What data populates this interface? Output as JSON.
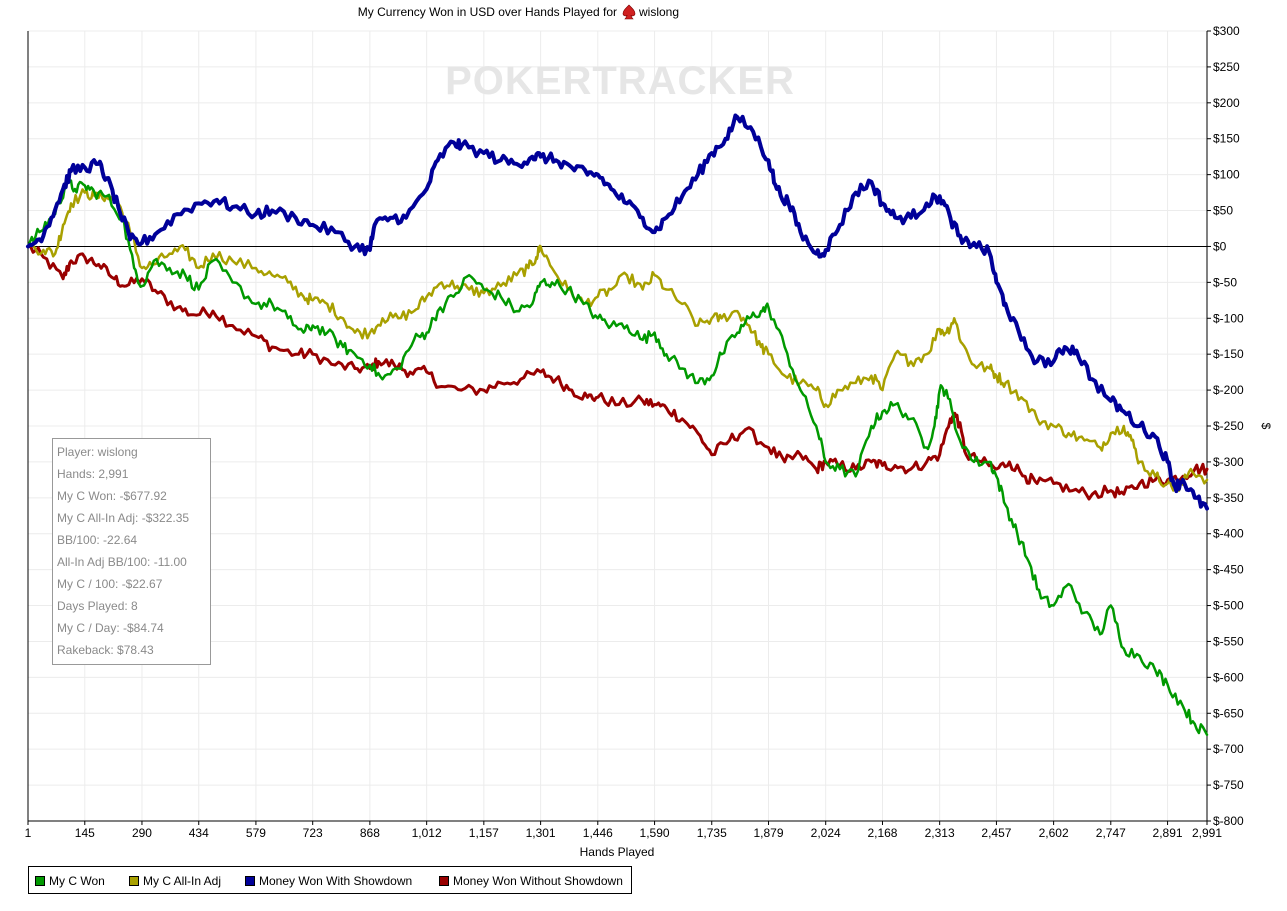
{
  "chart_data": {
    "type": "line",
    "title_prefix": "My Currency Won in USD over Hands Played for",
    "player_name": "wislong",
    "player_icon": "spade-suit-icon",
    "watermark": "POKERTRACKER",
    "xlabel": "Hands Played",
    "ylabel": "$",
    "xlim": [
      1,
      2991
    ],
    "ylim": [
      -800,
      300
    ],
    "x_ticks": [
      "1",
      "145",
      "290",
      "434",
      "579",
      "723",
      "868",
      "1,012",
      "1,157",
      "1,301",
      "1,446",
      "1,590",
      "1,735",
      "1,879",
      "2,024",
      "2,168",
      "2,313",
      "2,457",
      "2,602",
      "2,747",
      "2,891",
      "2,991"
    ],
    "x_tick_values": [
      1,
      145,
      290,
      434,
      579,
      723,
      868,
      1012,
      1157,
      1301,
      1446,
      1590,
      1735,
      1879,
      2024,
      2168,
      2313,
      2457,
      2602,
      2747,
      2891,
      2991
    ],
    "y_ticks": [
      "$300",
      "$250",
      "$200",
      "$150",
      "$100",
      "$50",
      "$0",
      "$-50",
      "$-100",
      "$-150",
      "$-200",
      "$-250",
      "$-300",
      "$-350",
      "$-400",
      "$-450",
      "$-500",
      "$-550",
      "$-600",
      "$-650",
      "$-700",
      "$-750",
      "$-800"
    ],
    "y_tick_values": [
      300,
      250,
      200,
      150,
      100,
      50,
      0,
      -50,
      -100,
      -150,
      -200,
      -250,
      -300,
      -350,
      -400,
      -450,
      -500,
      -550,
      -600,
      -650,
      -700,
      -750,
      -800
    ],
    "grid": true,
    "legend_position": "bottom-left",
    "series": [
      {
        "name": "Money Won Without Showdown",
        "color": "#990000",
        "x": [
          1,
          40,
          90,
          110,
          145,
          180,
          220,
          250,
          290,
          330,
          380,
          420,
          470,
          520,
          579,
          620,
          680,
          723,
          780,
          830,
          868,
          890,
          930,
          970,
          1012,
          1050,
          1100,
          1157,
          1200,
          1250,
          1301,
          1340,
          1380,
          1420,
          1446,
          1500,
          1560,
          1590,
          1620,
          1660,
          1700,
          1735,
          1780,
          1820,
          1879,
          1920,
          1960,
          2000,
          2024,
          2060,
          2100,
          2140,
          2168,
          2200,
          2240,
          2280,
          2313,
          2340,
          2357,
          2380,
          2420,
          2457,
          2490,
          2530,
          2560,
          2602,
          2650,
          2700,
          2747,
          2780,
          2820,
          2860,
          2891,
          2930,
          2960,
          2991
        ],
        "y": [
          0,
          -15,
          -45,
          -20,
          -15,
          -25,
          -45,
          -55,
          -45,
          -65,
          -85,
          -95,
          -90,
          -110,
          -125,
          -140,
          -150,
          -150,
          -165,
          -170,
          -170,
          -160,
          -165,
          -175,
          -175,
          -195,
          -200,
          -200,
          -190,
          -185,
          -175,
          -185,
          -200,
          -210,
          -210,
          -220,
          -215,
          -220,
          -225,
          -240,
          -260,
          -290,
          -270,
          -255,
          -280,
          -300,
          -290,
          -310,
          -300,
          -305,
          -310,
          -300,
          -305,
          -305,
          -310,
          -300,
          -290,
          -240,
          -235,
          -290,
          -300,
          -310,
          -300,
          -320,
          -330,
          -330,
          -340,
          -345,
          -340,
          -345,
          -330,
          -325,
          -325,
          -320,
          -310,
          -310
        ]
      },
      {
        "name": "My C All-In Adj",
        "color": "#a8a000",
        "x": [
          1,
          40,
          70,
          90,
          110,
          145,
          170,
          200,
          230,
          260,
          290,
          320,
          360,
          400,
          434,
          470,
          520,
          579,
          620,
          660,
          700,
          723,
          760,
          800,
          830,
          868,
          900,
          940,
          980,
          1012,
          1050,
          1090,
          1120,
          1157,
          1200,
          1240,
          1270,
          1290,
          1301,
          1330,
          1370,
          1410,
          1446,
          1480,
          1520,
          1560,
          1590,
          1620,
          1660,
          1700,
          1735,
          1760,
          1800,
          1830,
          1860,
          1879,
          1920,
          1960,
          2000,
          2024,
          2060,
          2100,
          2140,
          2168,
          2200,
          2240,
          2280,
          2313,
          2330,
          2350,
          2370,
          2400,
          2440,
          2457,
          2480,
          2520,
          2560,
          2602,
          2640,
          2680,
          2720,
          2747,
          2780,
          2800,
          2820,
          2860,
          2891,
          2920,
          2950,
          2991
        ],
        "y": [
          0,
          -5,
          -10,
          30,
          60,
          75,
          70,
          70,
          60,
          20,
          -30,
          -25,
          -10,
          -5,
          -30,
          -10,
          -20,
          -30,
          -40,
          -50,
          -70,
          -75,
          -80,
          -100,
          -120,
          -120,
          -100,
          -100,
          -90,
          -70,
          -50,
          -55,
          -60,
          -65,
          -55,
          -40,
          -30,
          -15,
          0,
          -30,
          -60,
          -80,
          -70,
          -60,
          -40,
          -60,
          -40,
          -60,
          -80,
          -110,
          -100,
          -100,
          -90,
          -110,
          -140,
          -150,
          -180,
          -190,
          -200,
          -220,
          -200,
          -190,
          -180,
          -200,
          -150,
          -160,
          -150,
          -115,
          -120,
          -100,
          -135,
          -165,
          -170,
          -180,
          -190,
          -210,
          -240,
          -250,
          -260,
          -270,
          -280,
          -260,
          -250,
          -270,
          -300,
          -320,
          -330,
          -340,
          -310,
          -325
        ]
      },
      {
        "name": "My C Won",
        "color": "#009900",
        "x": [
          1,
          30,
          60,
          80,
          100,
          120,
          145,
          170,
          200,
          240,
          270,
          290,
          320,
          360,
          400,
          434,
          470,
          520,
          579,
          620,
          660,
          700,
          723,
          760,
          800,
          830,
          868,
          900,
          940,
          980,
          1012,
          1040,
          1080,
          1120,
          1157,
          1200,
          1240,
          1280,
          1301,
          1330,
          1370,
          1410,
          1446,
          1480,
          1520,
          1560,
          1590,
          1620,
          1660,
          1700,
          1735,
          1760,
          1800,
          1830,
          1860,
          1879,
          1920,
          1960,
          2000,
          2024,
          2060,
          2100,
          2140,
          2168,
          2200,
          2240,
          2280,
          2300,
          2313,
          2330,
          2357,
          2400,
          2440,
          2457,
          2480,
          2510,
          2540,
          2570,
          2602,
          2640,
          2680,
          2720,
          2747,
          2780,
          2820,
          2860,
          2891,
          2930,
          2960,
          2991
        ],
        "y": [
          0,
          20,
          40,
          60,
          90,
          80,
          85,
          75,
          70,
          40,
          -30,
          -55,
          -20,
          -30,
          -40,
          -60,
          -20,
          -50,
          -80,
          -80,
          -100,
          -120,
          -110,
          -120,
          -140,
          -150,
          -165,
          -185,
          -170,
          -130,
          -120,
          -90,
          -70,
          -40,
          -60,
          -70,
          -90,
          -80,
          -50,
          -50,
          -60,
          -80,
          -100,
          -110,
          -110,
          -130,
          -120,
          -150,
          -170,
          -190,
          -180,
          -150,
          -120,
          -100,
          -90,
          -85,
          -140,
          -200,
          -250,
          -300,
          -310,
          -320,
          -250,
          -230,
          -220,
          -240,
          -280,
          -250,
          -200,
          -200,
          -260,
          -300,
          -300,
          -320,
          -360,
          -400,
          -440,
          -490,
          -500,
          -470,
          -510,
          -540,
          -500,
          -560,
          -570,
          -590,
          -610,
          -640,
          -665,
          -680
        ]
      },
      {
        "name": "Money Won With Showdown",
        "color": "#000099",
        "x": [
          1,
          30,
          60,
          90,
          110,
          145,
          180,
          200,
          230,
          260,
          290,
          330,
          380,
          434,
          480,
          520,
          579,
          620,
          680,
          723,
          780,
          830,
          868,
          880,
          920,
          960,
          1012,
          1040,
          1080,
          1100,
          1157,
          1200,
          1240,
          1280,
          1301,
          1340,
          1380,
          1420,
          1446,
          1480,
          1520,
          1560,
          1590,
          1620,
          1660,
          1700,
          1735,
          1770,
          1800,
          1840,
          1879,
          1900,
          1930,
          1960,
          2000,
          2024,
          2060,
          2100,
          2140,
          2168,
          2200,
          2240,
          2280,
          2313,
          2340,
          2370,
          2400,
          2440,
          2457,
          2480,
          2520,
          2560,
          2602,
          2630,
          2660,
          2700,
          2747,
          2780,
          2820,
          2860,
          2891,
          2910,
          2930,
          2960,
          2991
        ],
        "y": [
          0,
          10,
          40,
          80,
          105,
          110,
          115,
          95,
          55,
          10,
          5,
          20,
          45,
          60,
          65,
          55,
          45,
          50,
          40,
          30,
          20,
          0,
          -5,
          30,
          40,
          40,
          80,
          120,
          145,
          140,
          130,
          120,
          115,
          125,
          125,
          120,
          110,
          100,
          100,
          80,
          60,
          40,
          20,
          40,
          70,
          100,
          130,
          150,
          180,
          160,
          120,
          80,
          60,
          20,
          -10,
          -5,
          30,
          75,
          90,
          60,
          40,
          40,
          60,
          70,
          40,
          5,
          5,
          -10,
          -50,
          -80,
          -130,
          -160,
          -160,
          -140,
          -145,
          -185,
          -215,
          -230,
          -250,
          -265,
          -300,
          -335,
          -325,
          -350,
          -365
        ]
      }
    ]
  },
  "stats_box": {
    "lines": [
      "Player: wislong",
      "Hands: 2,991",
      "My C Won: -$677.92",
      "My C All-In Adj: -$322.35",
      "BB/100: -22.64",
      "All-In Adj BB/100: -11.00",
      "My C / 100: -$22.67",
      "Days Played: 8",
      "My C / Day: -$84.74",
      "Rakeback: $78.43"
    ]
  },
  "legend": {
    "items": [
      {
        "label": "My C Won",
        "color": "#009900"
      },
      {
        "label": "My C All-In Adj",
        "color": "#a8a000"
      },
      {
        "label": "Money Won With Showdown",
        "color": "#000099"
      },
      {
        "label": "Money Won Without Showdown",
        "color": "#990000"
      }
    ]
  }
}
